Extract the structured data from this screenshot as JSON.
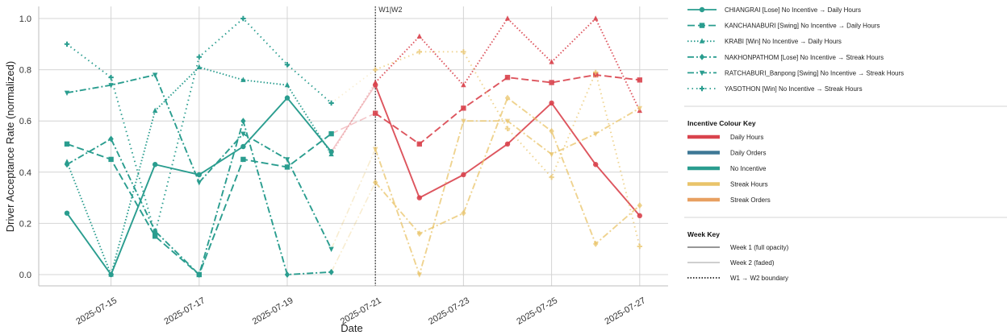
{
  "chart_data": {
    "type": "line",
    "xlabel": "Date",
    "ylabel": "Driver Acceptance Rate (normalized)",
    "ylim": [
      -0.05,
      1.05
    ],
    "yticks": [
      "0.0",
      "0.2",
      "0.4",
      "0.6",
      "0.8",
      "1.0"
    ],
    "xticks": [
      "2025-07-15",
      "2025-07-17",
      "2025-07-19",
      "2025-07-21",
      "2025-07-23",
      "2025-07-25",
      "2025-07-27"
    ],
    "x_dates": [
      "2025-07-14",
      "2025-07-15",
      "2025-07-16",
      "2025-07-17",
      "2025-07-18",
      "2025-07-19",
      "2025-07-20",
      "2025-07-21",
      "2025-07-22",
      "2025-07-23",
      "2025-07-24",
      "2025-07-25",
      "2025-07-26",
      "2025-07-27"
    ],
    "grid": true,
    "boundary": {
      "date": "2025-07-21",
      "label": "W1|W2"
    },
    "colors": {
      "daily_hours": "#d9434d",
      "daily_orders": "#3e7896",
      "no_incentive": "#2a9d8f",
      "streak_hours": "#e9c46a",
      "streak_orders": "#e8a061",
      "boundary": "#222222",
      "week_key_line": "#888888"
    },
    "series": [
      {
        "name": "CHIANGRAI [Lose]",
        "legend_label": "CHIANGRAI [Lose]   No Incentive → Daily Hours",
        "style": "solid",
        "marker": "circle",
        "week1": [
          0.24,
          0.0,
          0.43,
          0.39,
          0.5,
          0.69,
          0.48
        ],
        "week2": [
          0.74,
          0.3,
          0.39,
          0.51,
          0.67,
          0.43,
          0.23
        ]
      },
      {
        "name": "KANCHANABURI [Swing]",
        "legend_label": "KANCHANABURI [Swing]   No Incentive → Daily Hours",
        "style": "dashed",
        "marker": "square",
        "week1": [
          0.51,
          0.45,
          0.15,
          0.0,
          0.45,
          0.42,
          0.55
        ],
        "week2": [
          0.63,
          0.51,
          0.65,
          0.77,
          0.75,
          0.78,
          0.76
        ]
      },
      {
        "name": "KRABI [Win]",
        "legend_label": "KRABI [Win]   No Incentive → Daily Hours",
        "style": "dotted",
        "marker": "triangle",
        "week1": [
          0.44,
          0.0,
          0.64,
          0.81,
          0.76,
          0.74,
          0.47
        ],
        "week2": [
          0.75,
          0.93,
          0.74,
          1.0,
          0.83,
          1.0,
          0.64
        ]
      },
      {
        "name": "NAKHONPATHOM [Lose]",
        "legend_label": "NAKHONPATHOM [Lose]   No Incentive → Streak Hours",
        "style": "dashdot",
        "marker": "diamond",
        "week1": [
          0.43,
          0.53,
          0.17,
          0.0,
          0.6,
          0.0,
          0.01
        ],
        "week2": [
          0.36,
          0.16,
          0.24,
          0.69,
          0.56,
          0.12,
          0.27
        ]
      },
      {
        "name": "RATCHABURI_Banpong [Swing]",
        "legend_label": "RATCHABURI_Banpong [Swing]   No Incentive → Streak Hours",
        "style": "dashdot",
        "marker": "triangle-down",
        "week1": [
          0.71,
          0.74,
          0.78,
          0.36,
          0.55,
          0.45,
          0.1
        ],
        "week2": [
          0.49,
          0.0,
          0.6,
          0.6,
          0.47,
          0.55,
          0.65
        ]
      },
      {
        "name": "YASOTHON [Win]",
        "legend_label": "YASOTHON [Win]   No Incentive → Streak Hours",
        "style": "densedot",
        "marker": "plus",
        "week1": [
          0.9,
          0.77,
          0.16,
          0.85,
          1.0,
          0.82,
          0.67
        ],
        "week2": [
          0.8,
          0.87,
          0.87,
          0.57,
          0.38,
          0.79,
          0.11
        ]
      }
    ],
    "legend": {
      "placement": "right",
      "incentive_title": "Incentive Colour Key",
      "incentives": [
        {
          "label": "Daily Hours",
          "color": "#d9434d"
        },
        {
          "label": "Daily Orders",
          "color": "#3e7896"
        },
        {
          "label": "No Incentive",
          "color": "#2a9d8f"
        },
        {
          "label": "Streak Hours",
          "color": "#e9c46a"
        },
        {
          "label": "Streak Orders",
          "color": "#e8a061"
        }
      ],
      "week_title": "Week Key",
      "weeks": [
        {
          "label": "Week 1  (full opacity)",
          "style": "solid-dark"
        },
        {
          "label": "Week 2  (faded)",
          "style": "solid-light"
        },
        {
          "label": "W1 → W2 boundary",
          "style": "dotted"
        }
      ]
    }
  }
}
